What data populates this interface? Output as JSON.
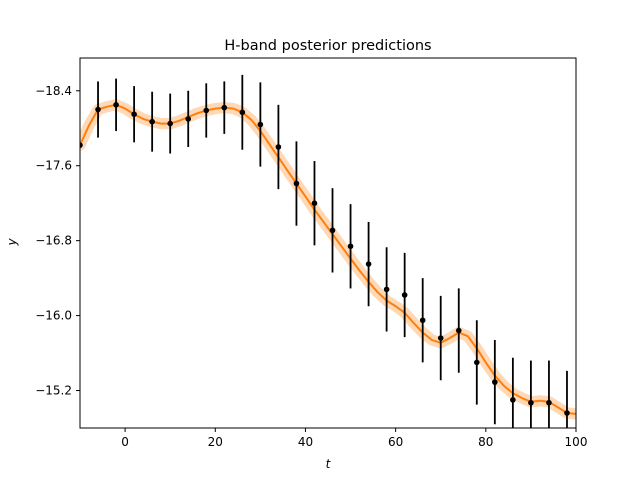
{
  "chart_data": {
    "type": "line",
    "title": "H-band posterior predictions",
    "xlabel": "t",
    "ylabel": "y",
    "xlim": [
      -10,
      100
    ],
    "ylim": [
      -18.75,
      -14.8
    ],
    "y_inverted": true,
    "xticks": [
      0,
      20,
      40,
      60,
      80,
      100
    ],
    "yticks": [
      -18.4,
      -17.6,
      -16.8,
      -16.0,
      -15.2
    ],
    "xtick_labels": [
      "0",
      "20",
      "40",
      "60",
      "80",
      "100"
    ],
    "ytick_labels": [
      "−18.4",
      "−17.6",
      "−16.8",
      "−16.0",
      "−15.2"
    ],
    "grid": false,
    "colors": {
      "prediction": "#ff7f0e",
      "observations": "#000000"
    },
    "series": [
      {
        "kind": "posterior-mean-with-band",
        "x": [
          -10,
          -8,
          -6,
          -4,
          -2,
          0,
          2,
          4,
          6,
          8,
          10,
          12,
          14,
          16,
          18,
          20,
          22,
          24,
          26,
          28,
          30,
          32,
          34,
          36,
          38,
          40,
          42,
          44,
          46,
          48,
          50,
          52,
          54,
          56,
          58,
          60,
          62,
          64,
          66,
          68,
          70,
          72,
          74,
          76,
          78,
          80,
          82,
          84,
          86,
          88,
          90,
          92,
          94,
          96,
          98,
          100
        ],
        "y": [
          -17.82,
          -18.03,
          -18.2,
          -18.23,
          -18.25,
          -18.21,
          -18.15,
          -18.1,
          -18.07,
          -18.05,
          -18.05,
          -18.08,
          -18.12,
          -18.16,
          -18.19,
          -18.21,
          -18.22,
          -18.21,
          -18.17,
          -18.09,
          -17.97,
          -17.83,
          -17.69,
          -17.55,
          -17.41,
          -17.27,
          -17.13,
          -17.0,
          -16.87,
          -16.74,
          -16.61,
          -16.48,
          -16.36,
          -16.25,
          -16.16,
          -16.1,
          -16.03,
          -15.92,
          -15.82,
          -15.74,
          -15.71,
          -15.76,
          -15.82,
          -15.78,
          -15.65,
          -15.5,
          -15.36,
          -15.25,
          -15.17,
          -15.12,
          -15.08,
          -15.09,
          -15.08,
          -15.02,
          -14.96,
          -14.95
        ],
        "band_halfwidth": 0.06
      },
      {
        "kind": "observations-with-errorbars",
        "points": [
          {
            "x": -10,
            "y": -17.82,
            "err": 0
          },
          {
            "x": -6,
            "y": -18.2,
            "err": 0.3
          },
          {
            "x": -2,
            "y": -18.25,
            "err": 0.28
          },
          {
            "x": 2,
            "y": -18.15,
            "err": 0.3
          },
          {
            "x": 6,
            "y": -18.07,
            "err": 0.32
          },
          {
            "x": 10,
            "y": -18.05,
            "err": 0.32
          },
          {
            "x": 14,
            "y": -18.1,
            "err": 0.3
          },
          {
            "x": 18,
            "y": -18.19,
            "err": 0.29
          },
          {
            "x": 22,
            "y": -18.22,
            "err": 0.28
          },
          {
            "x": 26,
            "y": -18.17,
            "err": 0.4
          },
          {
            "x": 30,
            "y": -18.04,
            "err": 0.45
          },
          {
            "x": 34,
            "y": -17.8,
            "err": 0.45
          },
          {
            "x": 38,
            "y": -17.41,
            "err": 0.45
          },
          {
            "x": 42,
            "y": -17.2,
            "err": 0.45
          },
          {
            "x": 46,
            "y": -16.91,
            "err": 0.45
          },
          {
            "x": 50,
            "y": -16.74,
            "err": 0.45
          },
          {
            "x": 54,
            "y": -16.55,
            "err": 0.45
          },
          {
            "x": 58,
            "y": -16.28,
            "err": 0.45
          },
          {
            "x": 62,
            "y": -16.22,
            "err": 0.45
          },
          {
            "x": 66,
            "y": -15.95,
            "err": 0.45
          },
          {
            "x": 70,
            "y": -15.76,
            "err": 0.45
          },
          {
            "x": 74,
            "y": -15.84,
            "err": 0.45
          },
          {
            "x": 78,
            "y": -15.5,
            "err": 0.45
          },
          {
            "x": 82,
            "y": -15.29,
            "err": 0.45
          },
          {
            "x": 86,
            "y": -15.1,
            "err": 0.45
          },
          {
            "x": 90,
            "y": -15.07,
            "err": 0.45
          },
          {
            "x": 94,
            "y": -15.07,
            "err": 0.45
          },
          {
            "x": 98,
            "y": -14.96,
            "err": 0.45
          }
        ]
      }
    ]
  }
}
